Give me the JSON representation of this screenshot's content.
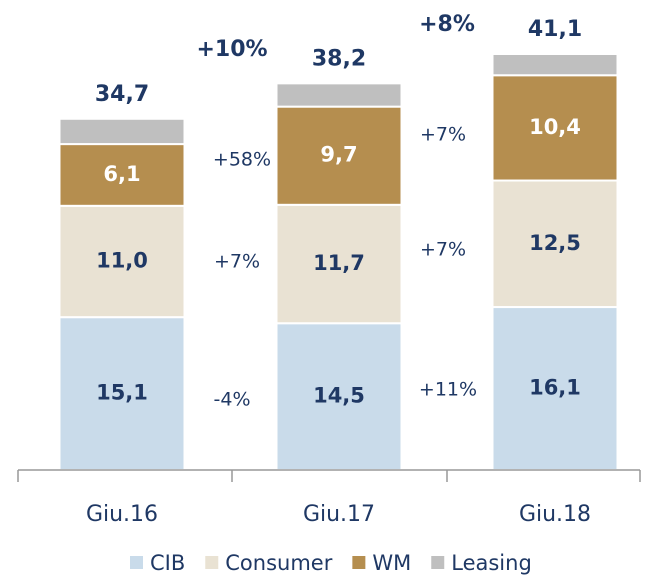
{
  "chart_data": {
    "type": "stacked_bar",
    "categories": [
      "Giu.16",
      "Giu.17",
      "Giu.18"
    ],
    "series": [
      {
        "name": "CIB",
        "color": "#c9dbea",
        "values": [
          15.1,
          14.5,
          16.1
        ],
        "value_labels": [
          "15,1",
          "14,5",
          "16,1"
        ],
        "label_color": "#1f3864"
      },
      {
        "name": "Consumer",
        "color": "#e9e2d3",
        "values": [
          11.0,
          11.7,
          12.5
        ],
        "value_labels": [
          "11,0",
          "11,7",
          "12,5"
        ],
        "label_color": "#1f3864"
      },
      {
        "name": "WM",
        "color": "#b58e4f",
        "values": [
          6.1,
          9.7,
          10.4
        ],
        "value_labels": [
          "6,1",
          "9,7",
          "10,4"
        ],
        "label_color": "#ffffff"
      },
      {
        "name": "Leasing",
        "color": "#bfbfbf",
        "values": [
          2.5,
          2.3,
          2.1
        ]
      }
    ],
    "totals": {
      "values": [
        34.7,
        38.2,
        41.1
      ],
      "value_labels": [
        "34,7",
        "38,2",
        "41,1"
      ]
    },
    "annotations": {
      "total_growth": [
        "+10%",
        "+8%"
      ],
      "segment_growth": [
        [
          "-4%",
          "+7%",
          "+58%"
        ],
        [
          "+11%",
          "+7%",
          "+7%"
        ]
      ]
    },
    "legend": "bottom"
  }
}
